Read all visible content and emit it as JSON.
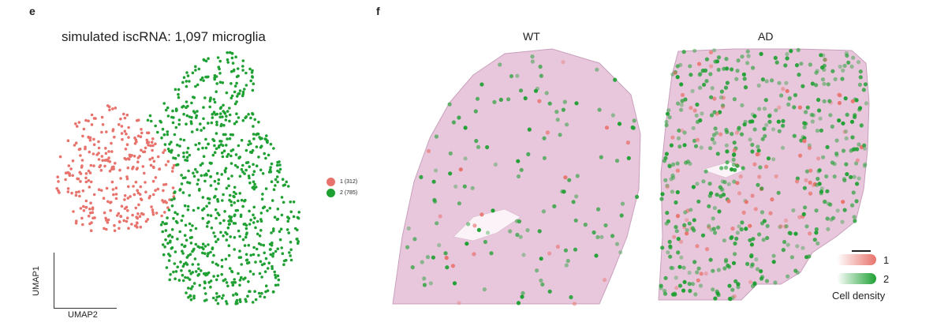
{
  "panel_e": {
    "letter": "e",
    "title": "simulated iscRNA: 1,097 microglia",
    "axis_x_label": "UMAP2",
    "axis_y_label": "UMAP1"
  },
  "panel_f": {
    "letter": "f",
    "wt_label": "WT",
    "ad_label": "AD",
    "scale_legend": {
      "label_1": "1",
      "label_2": "2",
      "title": "Cell density"
    }
  },
  "colors": {
    "cluster1": "#e8736c",
    "cluster2": "#1fa033",
    "tissue": "#e8c6dc",
    "tissue_edge": "#c8a0bc"
  },
  "chart_data": {
    "type": "scatter",
    "title": "simulated iscRNA: 1,097 microglia",
    "xlabel": "UMAP2",
    "ylabel": "UMAP1",
    "series": [
      {
        "name": "1 (312)",
        "color": "#e8736c",
        "count": 312
      },
      {
        "name": "2 (785)",
        "color": "#1fa033",
        "count": 785
      }
    ]
  }
}
